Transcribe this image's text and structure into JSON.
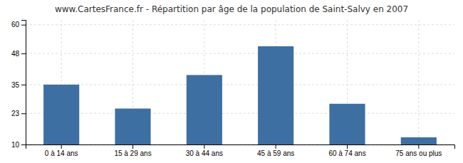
{
  "chart_data": {
    "type": "bar",
    "title": "www.CartesFrance.fr - Répartition par âge de la population de Saint-Salvy en 2007",
    "categories": [
      "0 à 14 ans",
      "15 à 29 ans",
      "30 à 44 ans",
      "45 à 59 ans",
      "60 à 74 ans",
      "75 ans ou plus"
    ],
    "values": [
      35,
      25,
      39,
      51,
      27,
      13
    ],
    "color": "#3d6fa3",
    "ylim": [
      10,
      62
    ],
    "yticks": [
      10,
      23,
      35,
      48,
      60
    ],
    "grid": true
  }
}
